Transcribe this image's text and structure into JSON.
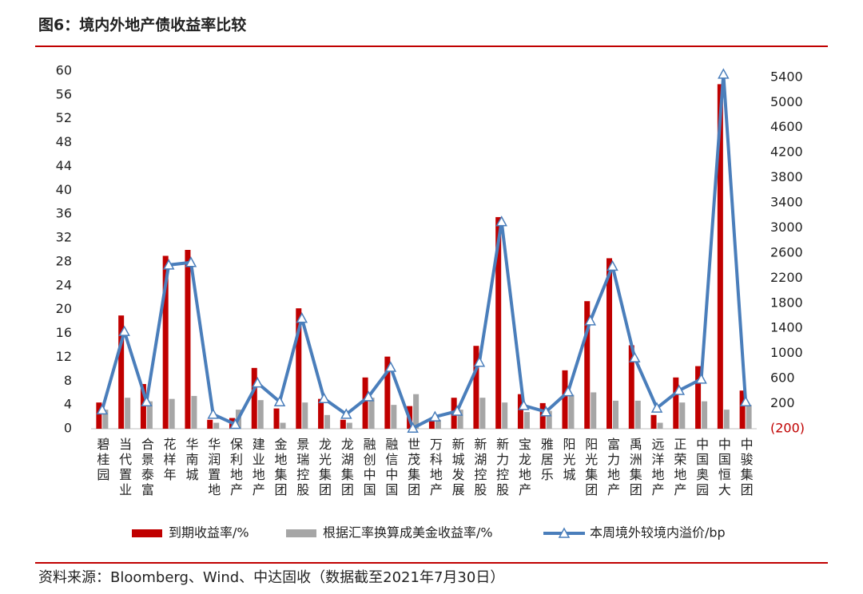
{
  "chart_data": {
    "type": "bar-line",
    "title": "图6：境内外地产债收益率比较",
    "source": "资料来源：Bloomberg、Wind、中达固收（数据截至2021年7月30日）",
    "categories": [
      "碧桂园",
      "当代置业",
      "合景泰富",
      "花样年",
      "华南城",
      "华润置地",
      "保利地产",
      "建业地产",
      "金地集团",
      "景瑞控股",
      "龙光集团",
      "龙湖集团",
      "融创中国",
      "融信中国",
      "世茂集团",
      "万科地产",
      "新城发展",
      "新湖控股",
      "新力控股",
      "宝龙地产",
      "雅居乐",
      "阳光城",
      "阳光集团",
      "富力地产",
      "禹洲集团",
      "远洋地产",
      "正荣地产",
      "中国奥园",
      "中国恒大",
      "中骏集团"
    ],
    "series": [
      {
        "name": "到期收益率/%",
        "type": "bar",
        "color": "#c00000",
        "values": [
          4.4,
          19,
          7.5,
          29,
          30,
          1.5,
          1.8,
          10.2,
          3.4,
          20.2,
          5,
          1.5,
          8.6,
          12.1,
          3.8,
          1.5,
          5.2,
          13.9,
          35.5,
          5.8,
          4.3,
          9.8,
          21.4,
          28.6,
          14,
          2.3,
          8.6,
          10.5,
          57.8,
          6.4
        ]
      },
      {
        "name": "根据汇率换算成美金收益率/%",
        "type": "bar",
        "color": "#a6a6a6",
        "values": [
          3.2,
          5.2,
          4.6,
          5,
          5.5,
          1,
          3.2,
          4.8,
          1,
          4.4,
          2.3,
          1,
          5.2,
          4,
          5.8,
          1.5,
          3.2,
          5.2,
          4.4,
          2.8,
          3,
          5.7,
          6.1,
          4.7,
          4.7,
          1,
          4.4,
          4.6,
          3.2,
          4
        ]
      },
      {
        "name": "本周境外较境内溢价/bp",
        "type": "line",
        "axis": "y2",
        "color": "#4a7ebb",
        "values": [
          100,
          1350,
          230,
          2410,
          2450,
          30,
          -130,
          530,
          230,
          1560,
          280,
          30,
          310,
          780,
          -190,
          -10,
          80,
          860,
          3100,
          170,
          70,
          390,
          1520,
          2390,
          930,
          130,
          410,
          590,
          5450,
          230
        ]
      }
    ],
    "ylim": [
      0,
      60
    ],
    "yticks": [
      0,
      4,
      8,
      12,
      16,
      20,
      24,
      28,
      32,
      36,
      40,
      44,
      48,
      52,
      56,
      60
    ],
    "y2lim": [
      -200,
      5500
    ],
    "y2ticks": [
      {
        "value": -200,
        "label": "(200)"
      },
      200,
      600,
      1000,
      1400,
      1800,
      2200,
      2600,
      3000,
      3400,
      3800,
      4200,
      4600,
      5000,
      5400
    ]
  }
}
